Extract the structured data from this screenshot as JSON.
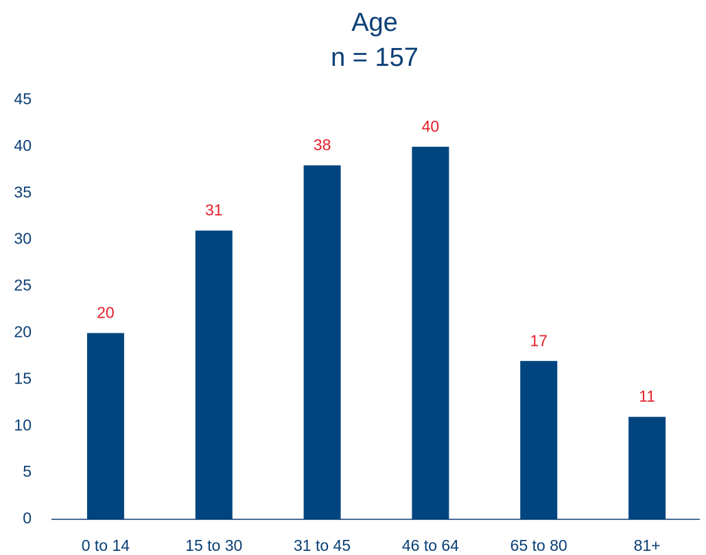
{
  "chart_data": {
    "type": "bar",
    "title": "Age",
    "subtitle": "n = 157",
    "categories": [
      "0 to 14",
      "15 to 30",
      "31 to 45",
      "46 to 64",
      "65 to 80",
      "81+"
    ],
    "values": [
      20,
      31,
      38,
      40,
      17,
      11
    ],
    "color": "#00457f",
    "label_color": "#e3202b",
    "ylim": [
      0,
      45
    ],
    "yticks": [
      0,
      5,
      10,
      15,
      20,
      25,
      30,
      35,
      40,
      45
    ],
    "grid": false
  }
}
